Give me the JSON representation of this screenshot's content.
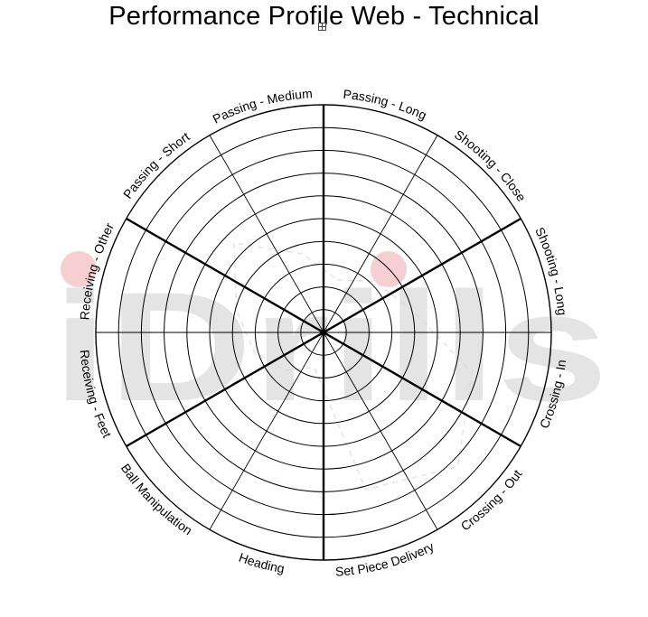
{
  "title": "Performance Profile Web - Technical",
  "watermark": {
    "text": "iDrills",
    "dot_color": "#f6cfd2",
    "text_color": "#e4e4e4"
  },
  "ring_count": 10,
  "segments": [
    {
      "label": "Passing - Long"
    },
    {
      "label": "Shooting - Close"
    },
    {
      "label": "Shooting - Long"
    },
    {
      "label": "Crossing - In"
    },
    {
      "label": "Crossing - Out"
    },
    {
      "label": "Set Piece Delivery"
    },
    {
      "label": "Heading"
    },
    {
      "label": "Ball Manipulation"
    },
    {
      "label": "Receiving - Feet"
    },
    {
      "label": "Receiving - Other"
    },
    {
      "label": "Passing - Short"
    },
    {
      "label": "Passing - Medium"
    }
  ],
  "colors": {
    "ring": "#000000",
    "background": "#ffffff",
    "faint_trace": "#d8d8d8"
  }
}
